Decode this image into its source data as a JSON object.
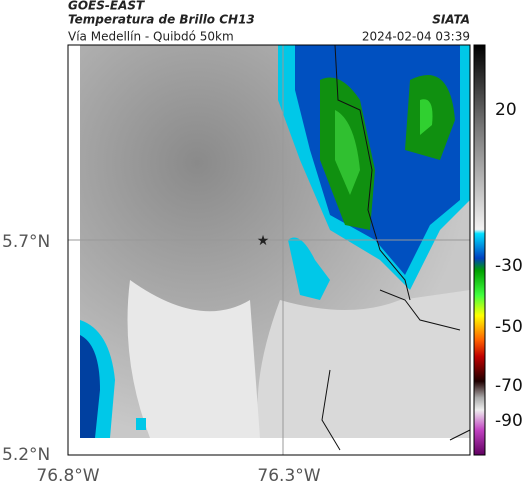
{
  "header": {
    "source": "GOES-EAST",
    "title": "Temperatura de Brillo CH13",
    "brand": "SIATA",
    "subtitle": "Vía Medellín - Quibdó 50km",
    "timestamp": "2024-02-04 03:39"
  },
  "map": {
    "lat_labels": [
      "5.7°N",
      "5.2°N"
    ],
    "lon_labels": [
      "76.8°W",
      "76.3°W"
    ]
  },
  "colorbar": {
    "labels": [
      "20",
      "-30",
      "-50",
      "-70",
      "-90"
    ]
  }
}
